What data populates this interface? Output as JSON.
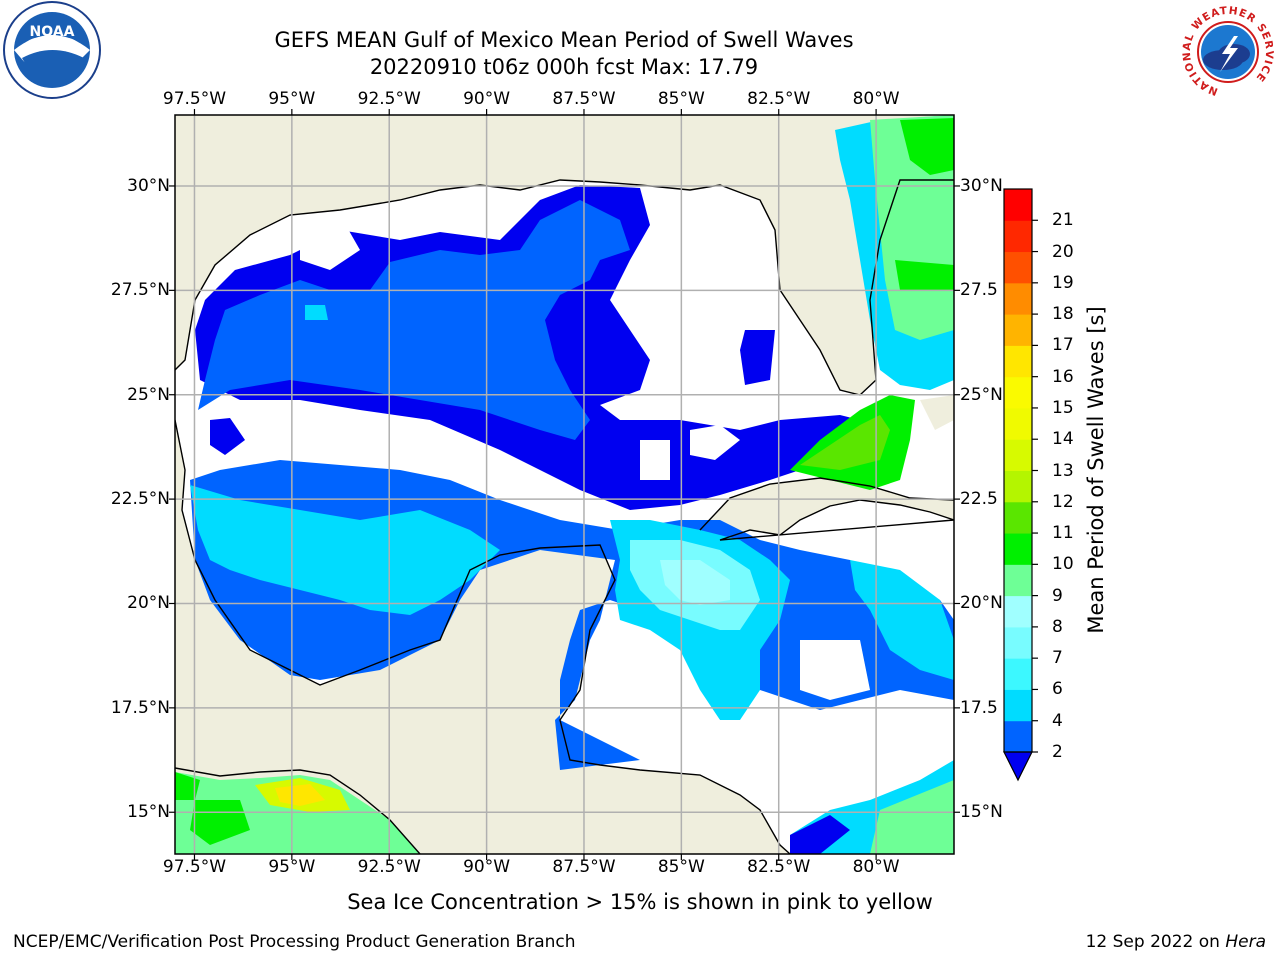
{
  "title": {
    "line1": "GEFS MEAN Gulf of Mexico Mean Period of Swell Waves",
    "line2": "20220910 t06z 000h fcst   Max: 17.79"
  },
  "map": {
    "lon_ticks": [
      "97.5°W",
      "95°W",
      "92.5°W",
      "90°W",
      "87.5°W",
      "85°W",
      "82.5°W",
      "80°W"
    ],
    "lat_ticks_left": [
      "30°N",
      "27.5°N",
      "25°N",
      "22.5°N",
      "20°N",
      "17.5°N",
      "15°N"
    ],
    "lat_ticks_right": [
      "30°N",
      "27.5",
      "25°N",
      "22.5",
      "20°N",
      "17.5",
      "15°N"
    ],
    "extent": {
      "lon_min": -98,
      "lon_max": -78,
      "lat_min": 14,
      "lat_max": 31.7
    },
    "colors": {
      "land": "#efeedd",
      "grid": "#b0b0b0",
      "coast": "#000000"
    }
  },
  "colorbar": {
    "label": "Mean Period of Swell Waves [s]",
    "ticks": [
      "2",
      "4",
      "6",
      "7",
      "8",
      "9",
      "10",
      "11",
      "12",
      "13",
      "14",
      "15",
      "16",
      "17",
      "18",
      "19",
      "20",
      "21"
    ],
    "colors": [
      "#0064ff",
      "#00dcff",
      "#3cf8ff",
      "#78fcff",
      "#a0ffff",
      "#6eff96",
      "#00f000",
      "#5ae600",
      "#b4f500",
      "#d7fa00",
      "#f0fa00",
      "#fafa00",
      "#ffe600",
      "#ffb400",
      "#ff8c00",
      "#ff5000",
      "#ff2800",
      "#ff0000"
    ],
    "under_color": "#0000f0"
  },
  "footer": {
    "note": "Sea Ice Concentration > 15% is shown in pink to yellow",
    "left": "NCEP/EMC/Verification Post Processing Product Generation Branch",
    "date": "12 Sep 2022 on",
    "machine": "Hera"
  },
  "logos": {
    "noaa_text": "NOAA",
    "nws_ring_text": "NATIONAL WEATHER SERVICE"
  }
}
